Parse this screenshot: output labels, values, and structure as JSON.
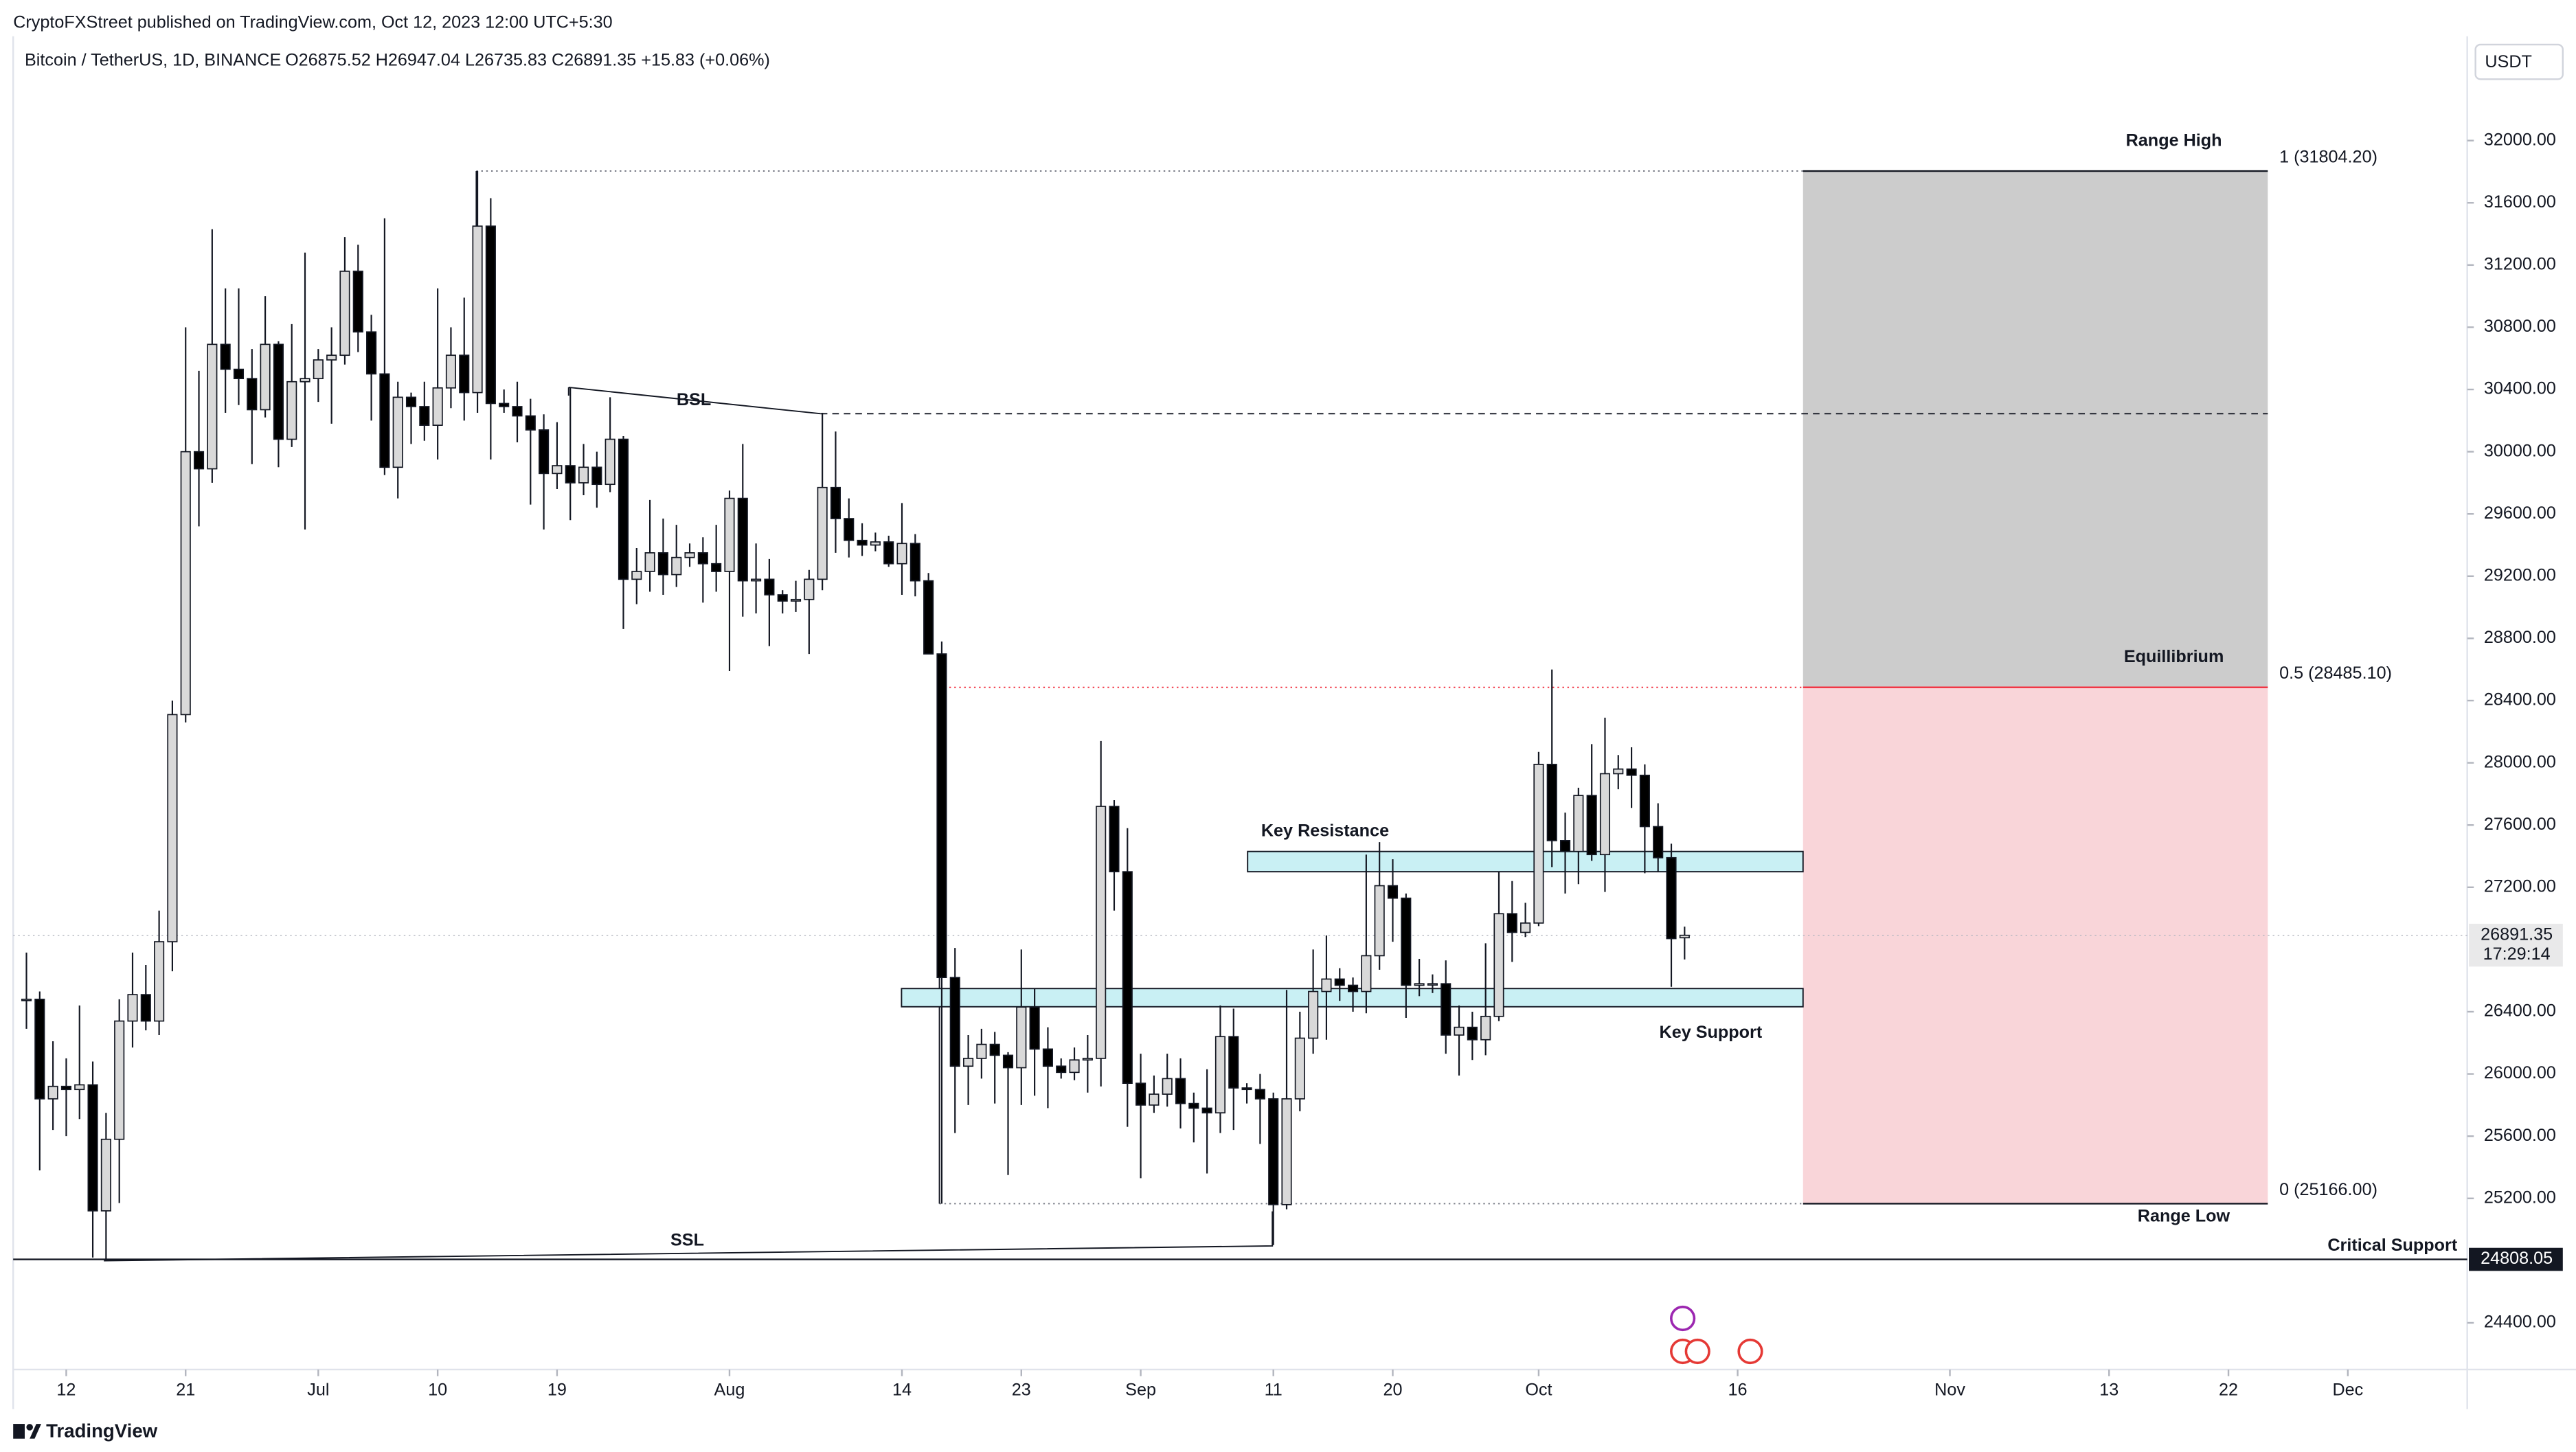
{
  "header": {
    "published": "CryptoFXStreet published on TradingView.com, Oct 12, 2023 12:00 UTC+5:30",
    "symbol": "Bitcoin / TetherUS, 1D, BINANCE",
    "ohlc": "O26875.52  H26947.04  L26735.83  C26891.35  +15.83 (+0.06%)"
  },
  "currency": "USDT",
  "footer": "TradingView",
  "chart_data": {
    "type": "candlestick",
    "up_color": "#d9d9d9",
    "down_color": "#000000",
    "grid": false,
    "xlim": [
      "06-08",
      "12-10"
    ],
    "ylim": [
      24100,
      32670
    ],
    "xticks": [
      {
        "value": "06-12",
        "label": "12"
      },
      {
        "value": "06-21",
        "label": "21"
      },
      {
        "value": "07-01",
        "label": "Jul"
      },
      {
        "value": "07-10",
        "label": "10"
      },
      {
        "value": "07-19",
        "label": "19"
      },
      {
        "value": "08-01",
        "label": "Aug"
      },
      {
        "value": "08-14",
        "label": "14"
      },
      {
        "value": "08-23",
        "label": "23"
      },
      {
        "value": "09-01",
        "label": "Sep"
      },
      {
        "value": "09-11",
        "label": "11"
      },
      {
        "value": "09-20",
        "label": "20"
      },
      {
        "value": "10-01",
        "label": "Oct"
      },
      {
        "value": "10-16",
        "label": "16"
      },
      {
        "value": "11-01",
        "label": "Nov"
      },
      {
        "value": "11-13",
        "label": "13"
      },
      {
        "value": "11-22",
        "label": "22"
      },
      {
        "value": "12-01",
        "label": "Dec"
      }
    ],
    "yticks": [
      {
        "value": 24400,
        "label": "24400.00"
      },
      {
        "value": 25200,
        "label": "25200.00"
      },
      {
        "value": 25600,
        "label": "25600.00"
      },
      {
        "value": 26000,
        "label": "26000.00"
      },
      {
        "value": 26400,
        "label": "26400.00"
      },
      {
        "value": 27200,
        "label": "27200.00"
      },
      {
        "value": 27600,
        "label": "27600.00"
      },
      {
        "value": 28000,
        "label": "28000.00"
      },
      {
        "value": 28400,
        "label": "28400.00"
      },
      {
        "value": 28800,
        "label": "28800.00"
      },
      {
        "value": 29200,
        "label": "29200.00"
      },
      {
        "value": 29600,
        "label": "29600.00"
      },
      {
        "value": 30000,
        "label": "30000.00"
      },
      {
        "value": 30400,
        "label": "30400.00"
      },
      {
        "value": 30800,
        "label": "30800.00"
      },
      {
        "value": 31200,
        "label": "31200.00"
      },
      {
        "value": 31600,
        "label": "31600.00"
      },
      {
        "value": 32000,
        "label": "32000.00"
      }
    ],
    "x": [
      "06-09",
      "06-10",
      "06-11",
      "06-12",
      "06-13",
      "06-14",
      "06-15",
      "06-16",
      "06-17",
      "06-18",
      "06-19",
      "06-20",
      "06-21",
      "06-22",
      "06-23",
      "06-24",
      "06-25",
      "06-26",
      "06-27",
      "06-28",
      "06-29",
      "06-30",
      "07-01",
      "07-02",
      "07-03",
      "07-04",
      "07-05",
      "07-06",
      "07-07",
      "07-08",
      "07-09",
      "07-10",
      "07-11",
      "07-12",
      "07-13",
      "07-14",
      "07-15",
      "07-16",
      "07-17",
      "07-18",
      "07-19",
      "07-20",
      "07-21",
      "07-22",
      "07-23",
      "07-24",
      "07-25",
      "07-26",
      "07-27",
      "07-28",
      "07-29",
      "07-30",
      "07-31",
      "08-01",
      "08-02",
      "08-03",
      "08-04",
      "08-05",
      "08-06",
      "08-07",
      "08-08",
      "08-09",
      "08-10",
      "08-11",
      "08-12",
      "08-13",
      "08-14",
      "08-15",
      "08-16",
      "08-17",
      "08-18",
      "08-19",
      "08-20",
      "08-21",
      "08-22",
      "08-23",
      "08-24",
      "08-25",
      "08-26",
      "08-27",
      "08-28",
      "08-29",
      "08-30",
      "08-31",
      "09-01",
      "09-02",
      "09-03",
      "09-04",
      "09-05",
      "09-06",
      "09-07",
      "09-08",
      "09-09",
      "09-10",
      "09-11",
      "09-12",
      "09-13",
      "09-14",
      "09-15",
      "09-16",
      "09-17",
      "09-18",
      "09-19",
      "09-20",
      "09-21",
      "09-22",
      "09-23",
      "09-24",
      "09-25",
      "09-26",
      "09-27",
      "09-28",
      "09-29",
      "09-30",
      "10-01",
      "10-02",
      "10-03",
      "10-04",
      "10-05",
      "10-06",
      "10-07",
      "10-08",
      "10-09",
      "10-10",
      "10-11",
      "10-12"
    ],
    "open": [
      26480,
      26480,
      25840,
      25920,
      25900,
      25930,
      25120,
      25580,
      26340,
      26510,
      26340,
      26850,
      28310,
      30000,
      29890,
      30690,
      30530,
      30470,
      30270,
      30690,
      30080,
      30450,
      30470,
      30590,
      30620,
      31160,
      30770,
      30500,
      29900,
      30350,
      30290,
      30170,
      30410,
      30620,
      30380,
      31450,
      30310,
      30290,
      30230,
      30140,
      29860,
      29910,
      29800,
      29900,
      29790,
      30080,
      29180,
      29230,
      29350,
      29210,
      29320,
      29350,
      29280,
      29230,
      29700,
      29170,
      29180,
      29080,
      29040,
      29050,
      29180,
      29770,
      29570,
      29430,
      29400,
      29420,
      29280,
      29410,
      29170,
      28700,
      26620,
      26050,
      26100,
      26190,
      26120,
      26040,
      26430,
      26160,
      26050,
      26010,
      26090,
      26100,
      27720,
      27300,
      25940,
      25800,
      25870,
      25970,
      25810,
      25780,
      25750,
      26240,
      25910,
      25900,
      25840,
      25160,
      25840,
      26230,
      26530,
      26610,
      26570,
      26530,
      26760,
      27210,
      27130,
      26570,
      26580,
      26580,
      26250,
      26300,
      26220,
      26370,
      27030,
      26910,
      26970,
      27990,
      27500,
      27430,
      27790,
      27410,
      27930,
      27960,
      27920,
      27590,
      27390,
      26875.52
    ],
    "high": [
      26780,
      26530,
      26210,
      26100,
      26440,
      26080,
      25750,
      26480,
      26780,
      26700,
      27050,
      28400,
      30800,
      30520,
      31430,
      31050,
      31050,
      30660,
      31000,
      30710,
      30820,
      31280,
      30660,
      30800,
      31380,
      31330,
      30880,
      31500,
      30450,
      30380,
      30450,
      31050,
      30800,
      30990,
      31804.2,
      31630,
      30400,
      30450,
      30340,
      30240,
      30190,
      30410,
      30050,
      30000,
      30350,
      30100,
      29380,
      29690,
      29570,
      29530,
      29410,
      29450,
      29530,
      29750,
      30050,
      29410,
      29310,
      29110,
      29170,
      29240,
      30250,
      30130,
      29700,
      29540,
      29480,
      29460,
      29670,
      29470,
      29220,
      28780,
      26810,
      26250,
      26290,
      26270,
      26140,
      26800,
      26550,
      26300,
      26100,
      26170,
      26250,
      28140,
      27760,
      27580,
      26130,
      25990,
      26130,
      26100,
      25880,
      26030,
      26440,
      26420,
      25940,
      26000,
      25880,
      26540,
      26400,
      26800,
      26890,
      26680,
      26620,
      27410,
      27490,
      27380,
      27160,
      26740,
      26640,
      26730,
      26440,
      26400,
      26840,
      27300,
      27240,
      27100,
      28070,
      28600,
      27680,
      27840,
      28120,
      28290,
      28050,
      28100,
      27990,
      27740,
      27480,
      26947.04
    ],
    "low": [
      26290,
      25380,
      25640,
      25600,
      25710,
      24820,
      24800,
      25170,
      26170,
      26280,
      26250,
      26660,
      28260,
      29520,
      29800,
      30250,
      30300,
      29920,
      30220,
      29900,
      30030,
      29500,
      30320,
      30180,
      30560,
      30640,
      30200,
      29850,
      29700,
      30050,
      30070,
      29950,
      30280,
      30200,
      30250,
      29950,
      30250,
      30060,
      29660,
      29500,
      29760,
      29560,
      29720,
      29640,
      29740,
      28860,
      29020,
      29100,
      29080,
      29130,
      29260,
      29030,
      29100,
      28590,
      28940,
      28960,
      28750,
      28960,
      28970,
      28700,
      29110,
      29350,
      29320,
      29330,
      29360,
      29260,
      29080,
      29070,
      28700,
      25166,
      25620,
      25800,
      25970,
      25810,
      25350,
      25800,
      25860,
      25780,
      25970,
      25960,
      25880,
      25920,
      27050,
      25660,
      25330,
      25750,
      25790,
      25650,
      25560,
      25360,
      25620,
      25640,
      25810,
      25550,
      24900,
      25130,
      25760,
      26130,
      26220,
      26470,
      26400,
      26390,
      26670,
      26850,
      26360,
      26500,
      26520,
      26130,
      25990,
      26090,
      26120,
      26340,
      26720,
      26880,
      26950,
      27330,
      27160,
      27220,
      27370,
      27170,
      27830,
      27710,
      27290,
      27300,
      26560,
      26735.83
    ],
    "close": [
      26480,
      25840,
      25920,
      25900,
      25930,
      25120,
      25580,
      26340,
      26510,
      26340,
      26850,
      28310,
      30000,
      29890,
      30690,
      30530,
      30470,
      30270,
      30690,
      30080,
      30450,
      30470,
      30590,
      30620,
      31160,
      30770,
      30500,
      29900,
      30350,
      30290,
      30170,
      30410,
      30620,
      30380,
      31450,
      30310,
      30290,
      30230,
      30140,
      29860,
      29910,
      29800,
      29900,
      29790,
      30080,
      29180,
      29230,
      29350,
      29210,
      29320,
      29350,
      29280,
      29230,
      29700,
      29170,
      29180,
      29080,
      29040,
      29050,
      29180,
      29770,
      29570,
      29430,
      29400,
      29420,
      29280,
      29410,
      29170,
      28700,
      26620,
      26050,
      26100,
      26190,
      26120,
      26040,
      26430,
      26160,
      26050,
      26010,
      26090,
      26100,
      27720,
      27300,
      25940,
      25800,
      25870,
      25970,
      25810,
      25780,
      25750,
      26240,
      25910,
      25900,
      25840,
      25160,
      25840,
      26230,
      26530,
      26610,
      26570,
      26530,
      26760,
      27210,
      27130,
      26570,
      26580,
      26580,
      26250,
      26300,
      26220,
      26370,
      27030,
      26910,
      26970,
      27990,
      27500,
      27430,
      27790,
      27410,
      27930,
      27960,
      27920,
      27590,
      27390,
      26870,
      26891.35
    ],
    "fib_levels": [
      {
        "name": "Range High",
        "value": 31804.2,
        "label": "1 (31804.20)",
        "color": "#131722"
      },
      {
        "name": "Equillibrium",
        "value": 28485.1,
        "label": "0.5 (28485.10)",
        "color": "#f23645"
      },
      {
        "name": "Range Low",
        "value": 25166,
        "label": "0 (25166.00)",
        "color": "#131722"
      }
    ],
    "zones": [
      {
        "name": "Key Resistance",
        "low": 27300,
        "high": 27430
      },
      {
        "name": "Key Support",
        "low": 26432,
        "high": 26549
      }
    ],
    "liquidity": [
      {
        "name": "BSL"
      },
      {
        "name": "SSL"
      }
    ],
    "critical_support": {
      "name": "Critical Support",
      "value": 24808.05,
      "label": "24808.05"
    },
    "last_price": {
      "value": 26891.35,
      "label": "26891.35",
      "countdown": "17:29:14"
    }
  }
}
